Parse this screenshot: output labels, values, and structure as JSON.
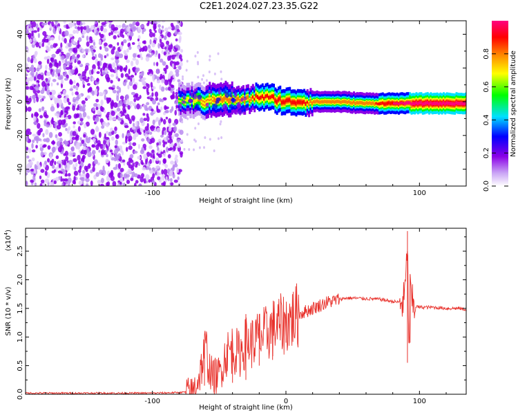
{
  "title": "C2E1.2024.027.23.35.G22",
  "chart_data": [
    {
      "type": "heatmap",
      "title": "C2E1.2024.027.23.35.G22",
      "xlabel": "Height of straight line (km)",
      "ylabel": "Frequency (Hz)",
      "xlim": [
        -195,
        135
      ],
      "ylim": [
        -50,
        48
      ],
      "xticks": [
        -100,
        0,
        100
      ],
      "xtick_labels": [
        "-100",
        "",
        "100"
      ],
      "yticks": [
        -40,
        -20,
        0,
        20,
        40
      ],
      "colorbar": {
        "label": "Normalized spectral amplitude",
        "range": [
          0.0,
          1.0
        ],
        "ticks": [
          0.0,
          0.2,
          0.4,
          0.6,
          0.8
        ],
        "tick_labels": [
          "0.0",
          "0.2",
          "0.4",
          "0.6",
          "0.8"
        ],
        "colors": [
          "#ffffff",
          "#8a00e6",
          "#0000ff",
          "#00e0ff",
          "#00ff00",
          "#ffff00",
          "#ff8000",
          "#ff0000",
          "#ff0080"
        ]
      },
      "noise_region_x": [
        -195,
        -78
      ],
      "signal_ridge": [
        {
          "x": -80,
          "freq": 0,
          "amp": 0.35
        },
        {
          "x": -70,
          "freq": 1,
          "amp": 0.45
        },
        {
          "x": -60,
          "freq": 0,
          "amp": 0.5
        },
        {
          "x": -50,
          "freq": 2,
          "amp": 0.55
        },
        {
          "x": -40,
          "freq": 1,
          "amp": 0.55
        },
        {
          "x": -30,
          "freq": 1,
          "amp": 0.6
        },
        {
          "x": -20,
          "freq": 3,
          "amp": 0.7
        },
        {
          "x": -10,
          "freq": 2,
          "amp": 0.7
        },
        {
          "x": 0,
          "freq": 0,
          "amp": 0.75
        },
        {
          "x": 10,
          "freq": 0,
          "amp": 0.75
        },
        {
          "x": 20,
          "freq": 0,
          "amp": 0.6
        },
        {
          "x": 40,
          "freq": 0,
          "amp": 0.55
        },
        {
          "x": 60,
          "freq": -1,
          "amp": 0.6
        },
        {
          "x": 80,
          "freq": -1,
          "amp": 0.75
        },
        {
          "x": 100,
          "freq": -1,
          "amp": 0.95
        },
        {
          "x": 120,
          "freq": -1,
          "amp": 0.95
        },
        {
          "x": 135,
          "freq": -1,
          "amp": 0.95
        }
      ]
    },
    {
      "type": "line",
      "xlabel": "Height of straight line (km)",
      "ylabel": "SNR (10 * v/v)",
      "y_multiplier_label": "(x10",
      "y_multiplier_exp": "4",
      "y_multiplier_close": ")",
      "xlim": [
        -195,
        135
      ],
      "ylim": [
        0,
        2.9
      ],
      "xticks": [
        -100,
        0,
        100
      ],
      "xtick_labels": [
        "-100",
        "0",
        "100"
      ],
      "yticks": [
        0.0,
        0.5,
        1.0,
        1.5,
        2.0,
        2.5
      ],
      "ytick_labels": [
        "0.0",
        "0.5",
        "1.0",
        "1.5",
        "2.0",
        "2.5"
      ],
      "line_color": "#e8302a",
      "series": [
        {
          "x": [
            -195,
            -150,
            -100,
            -80,
            -70,
            -65,
            -62,
            -60,
            -58,
            -55,
            -50,
            -45,
            -40,
            -35,
            -30,
            -25,
            -20,
            -15,
            -10,
            -5,
            0,
            10,
            20,
            30,
            40,
            45,
            50,
            60,
            70,
            80,
            88,
            90,
            91,
            92,
            93,
            95,
            100,
            110,
            120,
            130,
            135
          ],
          "y": [
            0.02,
            0.02,
            0.02,
            0.03,
            0.05,
            0.3,
            0.6,
            0.85,
            0.5,
            0.3,
            0.35,
            0.7,
            0.8,
            0.7,
            0.9,
            0.9,
            1.0,
            1.05,
            1.15,
            1.2,
            1.25,
            1.4,
            1.5,
            1.6,
            1.66,
            1.68,
            1.68,
            1.67,
            1.66,
            1.62,
            1.6,
            2.0,
            2.8,
            0.7,
            1.8,
            1.55,
            1.52,
            1.52,
            1.5,
            1.5,
            1.48
          ]
        }
      ],
      "spikes": [
        {
          "x": -61,
          "y_min": 0.15,
          "y_max": 0.95
        },
        {
          "x": -40,
          "y_min": 0.2,
          "y_max": 0.9
        },
        {
          "x": -30,
          "y_min": 0.25,
          "y_max": 1.4
        },
        {
          "x": -20,
          "y_min": 0.5,
          "y_max": 1.4
        },
        {
          "x": -10,
          "y_min": 0.6,
          "y_max": 1.3
        },
        {
          "x": 0,
          "y_min": 0.9,
          "y_max": 1.4
        },
        {
          "x": 91,
          "y_min": 0.55,
          "y_max": 2.85
        },
        {
          "x": 93,
          "y_min": 0.9,
          "y_max": 2.1
        }
      ]
    }
  ]
}
